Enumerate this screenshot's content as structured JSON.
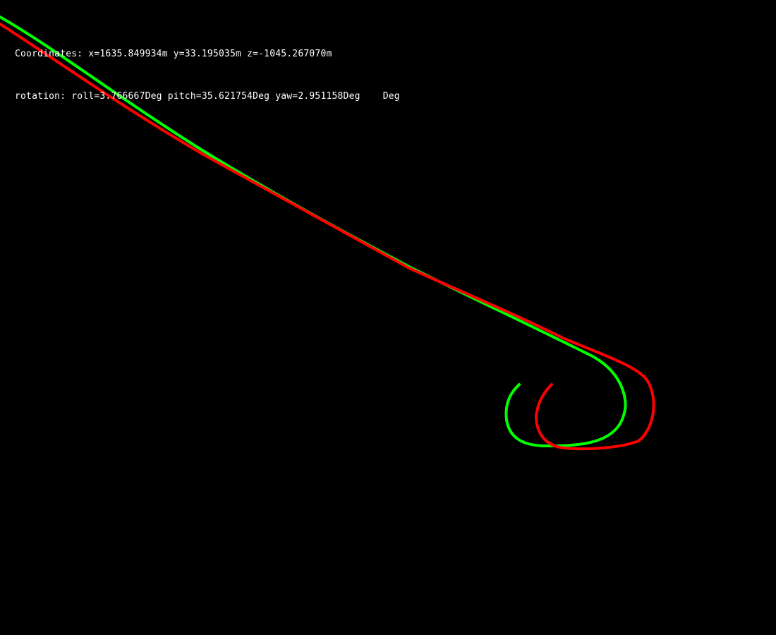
{
  "hud": {
    "coordinates_text": "Coordinates: x=1635.849934m y=33.195035m z=-1045.267070m",
    "rotation_text": "rotation: roll=3.766667Deg pitch=35.621754Deg yaw=2.951158Deg    Deg"
  },
  "colors": {
    "background": "#000000",
    "ground_truth_path": "#00ff00",
    "estimated_path": "#ff0000",
    "text": "#ffffff"
  }
}
